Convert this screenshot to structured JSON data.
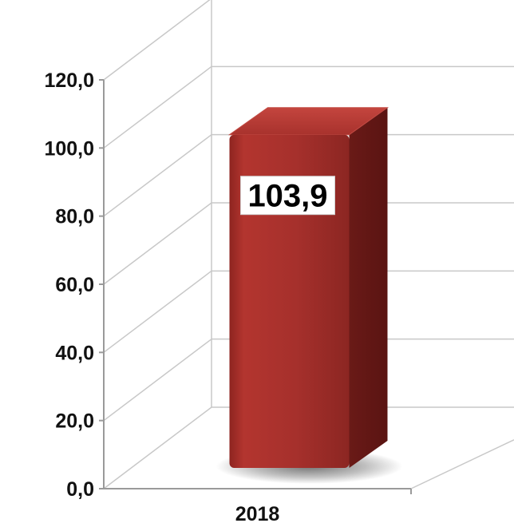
{
  "chart_data": {
    "type": "bar",
    "categories": [
      "2018"
    ],
    "values": [
      103.9
    ],
    "data_labels": [
      "103,9"
    ],
    "yticks": [
      "0,0",
      "20,0",
      "40,0",
      "60,0",
      "80,0",
      "100,0",
      "120,0"
    ],
    "ylim": [
      0,
      120
    ],
    "grid": true,
    "style": "3d",
    "bar_color": "#a6302c"
  }
}
